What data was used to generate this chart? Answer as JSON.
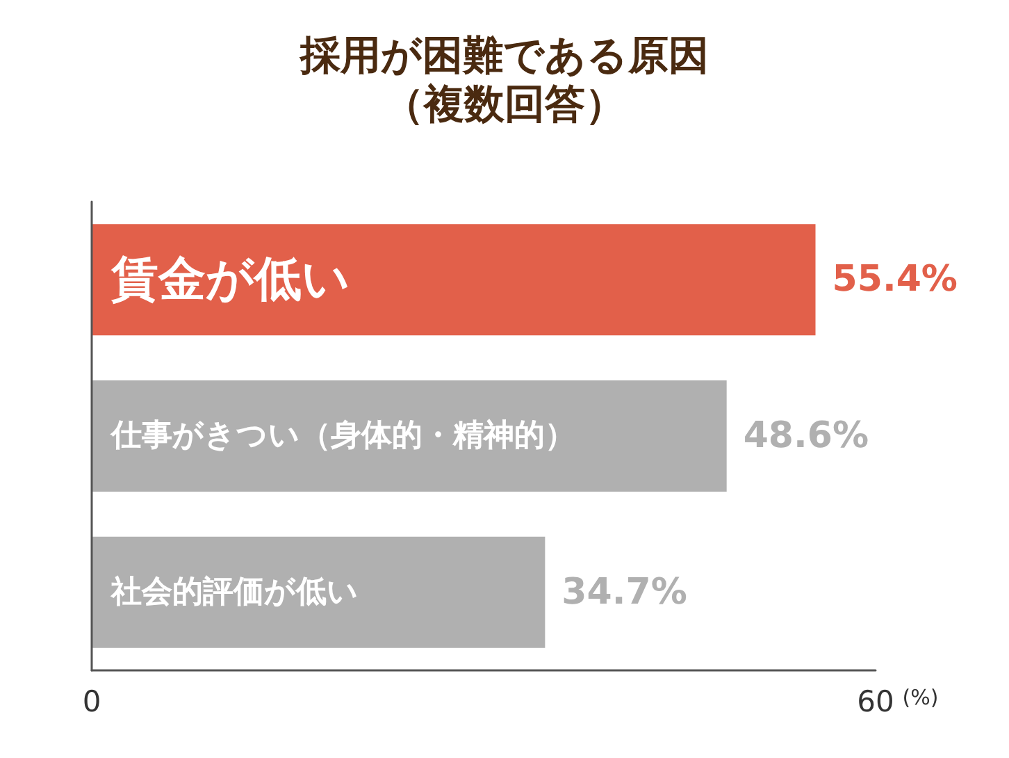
{
  "chart_data": {
    "type": "bar",
    "orientation": "horizontal",
    "title": "採用が困難である原因",
    "subtitle": "（複数回答）",
    "xlabel": "(%)",
    "categories": [
      "賃金が低い",
      "仕事がきつい（身体的・精神的）",
      "社会的評価が低い"
    ],
    "values": [
      55.4,
      48.6,
      34.7
    ],
    "colors": [
      "#e2604a",
      "#b0b0b0",
      "#b0b0b0"
    ],
    "value_labels": [
      "55.4%",
      "48.6%",
      "34.7%"
    ],
    "xlim": [
      0,
      60
    ],
    "xticks": [
      0,
      60
    ]
  }
}
